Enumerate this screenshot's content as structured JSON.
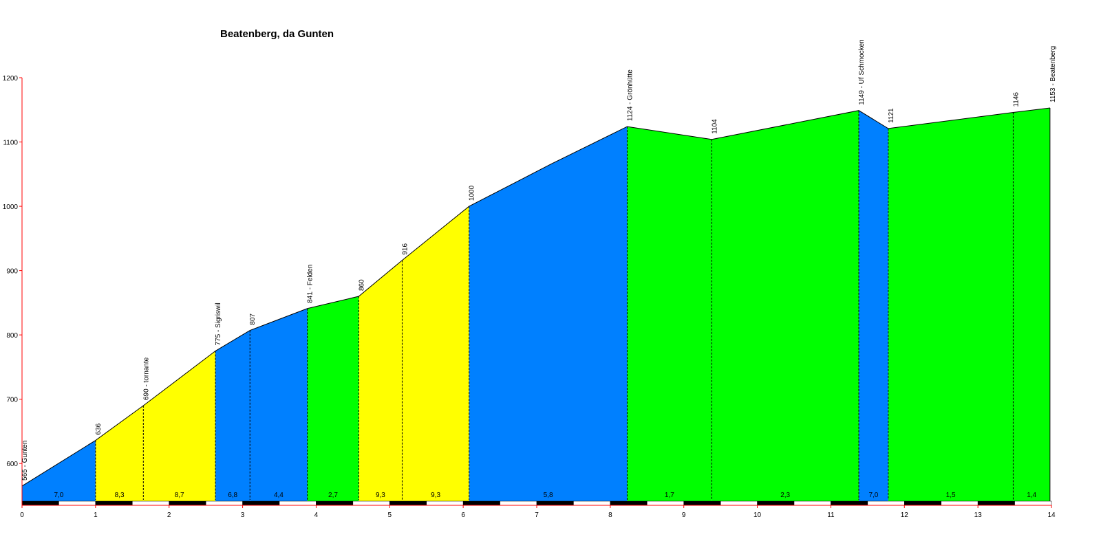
{
  "chart_data": {
    "type": "area",
    "title": "Beatenberg, da Gunten",
    "xlabel": "",
    "ylabel": "",
    "xlim": [
      0,
      14
    ],
    "ylim": [
      535,
      1200
    ],
    "x_ticks": [
      0,
      1,
      2,
      3,
      4,
      5,
      6,
      7,
      8,
      9,
      10,
      11,
      12,
      13,
      14
    ],
    "y_ticks": [
      600,
      700,
      800,
      900,
      1000,
      1100,
      1200
    ],
    "grid": false,
    "profile": [
      {
        "x": 0,
        "y": 565
      },
      {
        "x": 1.0,
        "y": 636
      },
      {
        "x": 1.65,
        "y": 690
      },
      {
        "x": 2.63,
        "y": 775
      },
      {
        "x": 3.1,
        "y": 807
      },
      {
        "x": 3.88,
        "y": 841
      },
      {
        "x": 4.58,
        "y": 860
      },
      {
        "x": 5.17,
        "y": 916
      },
      {
        "x": 6.08,
        "y": 1000
      },
      {
        "x": 7.2,
        "y": 1066
      },
      {
        "x": 8.23,
        "y": 1124
      },
      {
        "x": 9.38,
        "y": 1104
      },
      {
        "x": 11.38,
        "y": 1149
      },
      {
        "x": 11.78,
        "y": 1121
      },
      {
        "x": 13.48,
        "y": 1146
      },
      {
        "x": 13.98,
        "y": 1153
      }
    ],
    "point_labels": [
      {
        "x": 0,
        "y": 565,
        "text": "565 - Gunten"
      },
      {
        "x": 1.0,
        "y": 636,
        "text": "636"
      },
      {
        "x": 1.65,
        "y": 690,
        "text": "690 - tornante"
      },
      {
        "x": 2.63,
        "y": 775,
        "text": "775 - Sigriswil"
      },
      {
        "x": 3.1,
        "y": 807,
        "text": "807"
      },
      {
        "x": 3.88,
        "y": 841,
        "text": "841 - Felden"
      },
      {
        "x": 4.58,
        "y": 860,
        "text": "860"
      },
      {
        "x": 5.17,
        "y": 916,
        "text": "916"
      },
      {
        "x": 6.08,
        "y": 1000,
        "text": "1000"
      },
      {
        "x": 8.23,
        "y": 1124,
        "text": "1124 - Grönhütte"
      },
      {
        "x": 9.38,
        "y": 1104,
        "text": "1104"
      },
      {
        "x": 11.38,
        "y": 1149,
        "text": "1149 - Uf Schmocken"
      },
      {
        "x": 11.78,
        "y": 1121,
        "text": "1121"
      },
      {
        "x": 13.48,
        "y": 1146,
        "text": "1146"
      },
      {
        "x": 13.98,
        "y": 1153,
        "text": "1153 - Beatenberg"
      }
    ],
    "segments": [
      {
        "x0": 0,
        "x1": 1.0,
        "color": "#0080ff",
        "gradient": "7,0"
      },
      {
        "x0": 1.0,
        "x1": 1.65,
        "color": "#ffff00",
        "gradient": "8,3"
      },
      {
        "x0": 1.65,
        "x1": 2.63,
        "color": "#ffff00",
        "gradient": "8,7"
      },
      {
        "x0": 2.63,
        "x1": 3.1,
        "color": "#0080ff",
        "gradient": "6,8"
      },
      {
        "x0": 3.1,
        "x1": 3.88,
        "color": "#0080ff",
        "gradient": "4,4"
      },
      {
        "x0": 3.88,
        "x1": 4.58,
        "color": "#00ff00",
        "gradient": "2,7"
      },
      {
        "x0": 4.58,
        "x1": 5.17,
        "color": "#ffff00",
        "gradient": "9,3"
      },
      {
        "x0": 5.17,
        "x1": 6.08,
        "color": "#ffff00",
        "gradient": "9,3"
      },
      {
        "x0": 6.08,
        "x1": 8.23,
        "color": "#0080ff",
        "gradient": "5,8"
      },
      {
        "x0": 8.23,
        "x1": 9.38,
        "color": "#00ff00",
        "gradient": "1,7"
      },
      {
        "x0": 9.38,
        "x1": 11.38,
        "color": "#00ff00",
        "gradient": "2,3"
      },
      {
        "x0": 11.38,
        "x1": 11.78,
        "color": "#0080ff",
        "gradient": "7,0"
      },
      {
        "x0": 11.78,
        "x1": 13.48,
        "color": "#00ff00",
        "gradient": "1,5"
      },
      {
        "x0": 13.48,
        "x1": 13.98,
        "color": "#00ff00",
        "gradient": "1,4"
      }
    ],
    "colors": {
      "axis": "#ff0000",
      "outline": "#000000"
    }
  }
}
